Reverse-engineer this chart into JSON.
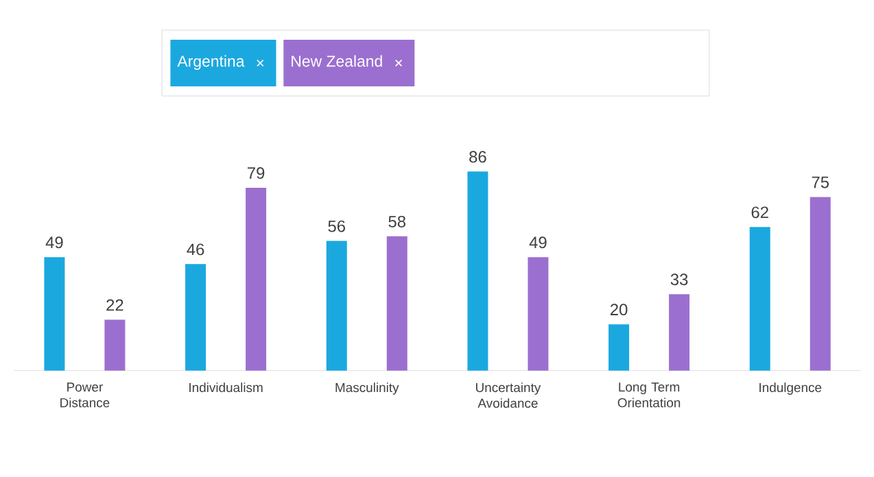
{
  "chart_data": {
    "type": "bar",
    "categories": [
      "Power Distance",
      "Individualism",
      "Masculinity",
      "Uncertainty Avoidance",
      "Long Term Orientation",
      "Indulgence"
    ],
    "series": [
      {
        "name": "Argentina",
        "color": "#1ba8df",
        "values": [
          49,
          46,
          56,
          86,
          20,
          62
        ]
      },
      {
        "name": "New Zealand",
        "color": "#9b6fcf",
        "values": [
          22,
          79,
          58,
          49,
          33,
          75
        ]
      }
    ],
    "data_labels": true,
    "legend": "top"
  }
}
